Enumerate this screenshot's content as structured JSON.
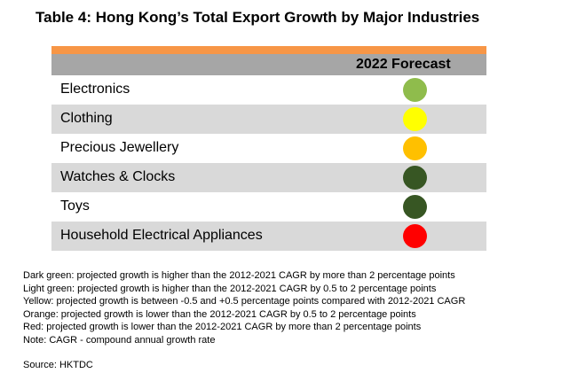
{
  "title": "Table 4: Hong Kong’s Total Export Growth by Major Industries",
  "table": {
    "accent_color": "#f79646",
    "header_color": "#a6a6a6",
    "column_header": "2022 Forecast",
    "rows": [
      {
        "industry": "Electronics",
        "status": "light-green",
        "color": "#8fbc4c",
        "shaded": false
      },
      {
        "industry": "Clothing",
        "status": "yellow",
        "color": "#ffff00",
        "shaded": true
      },
      {
        "industry": "Precious Jewellery",
        "status": "orange",
        "color": "#ffc000",
        "shaded": false
      },
      {
        "industry": "Watches & Clocks",
        "status": "dark-green",
        "color": "#375623",
        "shaded": true
      },
      {
        "industry": "Toys",
        "status": "dark-green",
        "color": "#375623",
        "shaded": false
      },
      {
        "industry": "Household Electrical Appliances",
        "status": "red",
        "color": "#ff0000",
        "shaded": true
      }
    ]
  },
  "notes": [
    "Dark green: projected growth is higher than the 2012-2021 CAGR by more than 2 percentage points",
    "Light green: projected growth is higher than the 2012-2021 CAGR by 0.5 to 2 percentage points",
    "Yellow: projected growth is between -0.5 and +0.5 percentage points compared with 2012-2021 CAGR",
    "Orange: projected growth is lower than the 2012-2021 CAGR by 0.5 to 2 percentage points",
    "Red: projected growth is lower than the 2012-2021 CAGR by more than 2 percentage points",
    "Note: CAGR - compound annual growth rate"
  ],
  "source": "Source: HKTDC"
}
